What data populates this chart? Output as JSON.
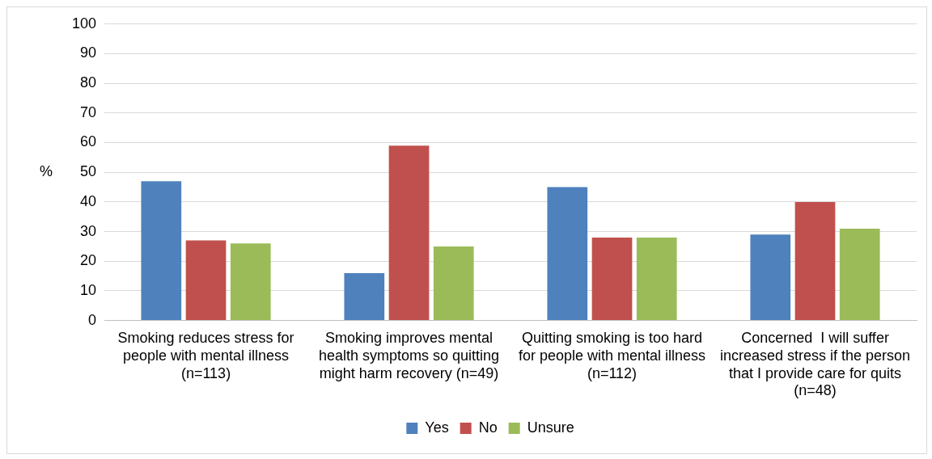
{
  "chart_data": {
    "type": "bar",
    "ylabel": "%",
    "categories": [
      "Smoking reduces stress for people with mental illness (n=113)",
      "Smoking improves mental health symptoms so quitting might harm recovery (n=49)",
      "Quitting smoking is too hard for people with mental illness (n=112)",
      "Concerned  I will suffer increased stress if the person that I provide care for quits (n=48)"
    ],
    "series": [
      {
        "name": "Yes",
        "color": "#4f81bd",
        "values": [
          47,
          16,
          45,
          29
        ]
      },
      {
        "name": "No",
        "color": "#c0504d",
        "values": [
          27,
          59,
          28,
          40
        ]
      },
      {
        "name": "Unsure",
        "color": "#9bbb59",
        "values": [
          26,
          25,
          28,
          31
        ]
      }
    ],
    "ylim": [
      0,
      100
    ],
    "yticks": [
      0,
      10,
      20,
      30,
      40,
      50,
      60,
      70,
      80,
      90,
      100
    ],
    "grid": "y",
    "legend": "bottom"
  }
}
